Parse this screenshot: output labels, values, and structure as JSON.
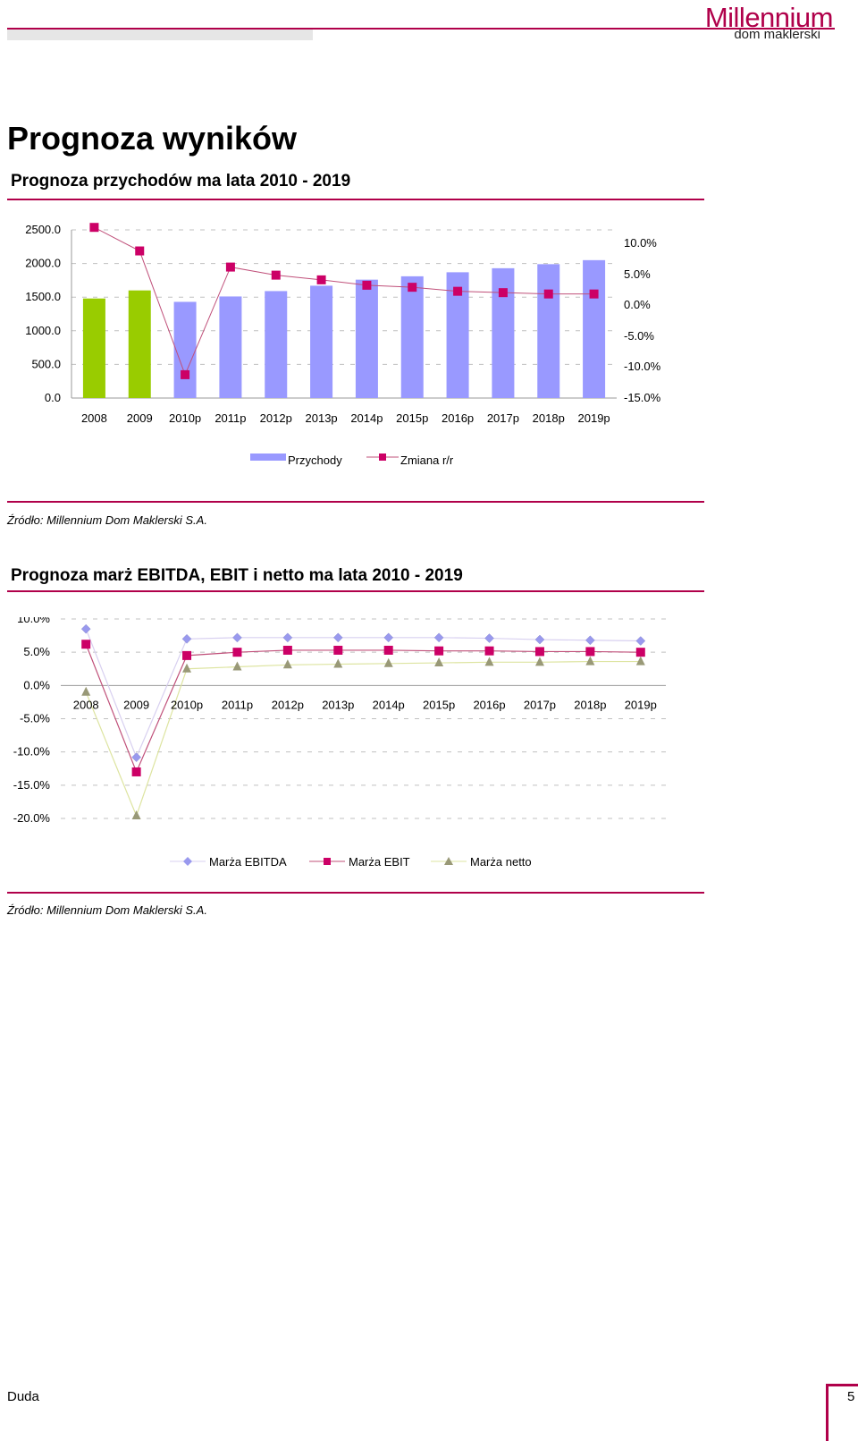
{
  "colors": {
    "accent": "#b0004a",
    "bar_actual": "#99cc00",
    "bar_forecast": "#9999ff",
    "change_line": "#c0507a",
    "ebitda": "#9999ee",
    "ebit": "#cc0066",
    "netto": "#999977",
    "netto_line": "#dde4a0",
    "grid": "#c0c0c0"
  },
  "header": {
    "logo_text": "Millennium",
    "logo_sub": "dom maklerski"
  },
  "page_title": "Prognoza wyników",
  "revenue_section": {
    "title": "Prognoza przychodów ma lata 2010 - 2019",
    "source": "Źródło: Millennium Dom Maklerski S.A."
  },
  "margins_section": {
    "title": "Prognoza marż EBITDA, EBIT i netto ma lata 2010 - 2019",
    "source": "Źródło: Millennium Dom Maklerski S.A."
  },
  "footer": {
    "author": "Duda",
    "page": "5"
  },
  "chart_data": [
    {
      "type": "bar",
      "categories": [
        "2008",
        "2009",
        "2010p",
        "2011p",
        "2012p",
        "2013p",
        "2014p",
        "2015p",
        "2016p",
        "2017p",
        "2018p",
        "2019p"
      ],
      "y_left": {
        "ticks": [
          "0.0",
          "500.0",
          "1000.0",
          "1500.0",
          "2000.0",
          "2500.0"
        ],
        "range": [
          0,
          2500
        ]
      },
      "y_right": {
        "ticks": [
          "-15.0%",
          "-10.0%",
          "-5.0%",
          "0.0%",
          "5.0%",
          "10.0%"
        ],
        "range": [
          -15,
          10
        ]
      },
      "series": [
        {
          "name": "Przychody",
          "axis": "left",
          "kind": "bar",
          "values": [
            1480,
            1600,
            1430,
            1510,
            1590,
            1670,
            1760,
            1810,
            1870,
            1930,
            1990,
            2050
          ]
        },
        {
          "name": "Zmiana r/r",
          "axis": "right",
          "kind": "line",
          "values": [
            11.7,
            8.2,
            -10.2,
            5.8,
            4.6,
            3.9,
            3.1,
            2.8,
            2.2,
            2.0,
            1.8,
            1.8
          ]
        }
      ],
      "grid": true,
      "legend": "bottom"
    },
    {
      "type": "line",
      "categories": [
        "2008",
        "2009",
        "2010p",
        "2011p",
        "2012p",
        "2013p",
        "2014p",
        "2015p",
        "2016p",
        "2017p",
        "2018p",
        "2019p"
      ],
      "y": {
        "ticks": [
          "-20.0%",
          "-15.0%",
          "-10.0%",
          "-5.0%",
          "0.0%",
          "5.0%",
          "10.0%"
        ],
        "range": [
          -20,
          10
        ]
      },
      "series": [
        {
          "name": "Marża EBITDA",
          "values": [
            8.5,
            -10.8,
            7.0,
            7.2,
            7.2,
            7.2,
            7.2,
            7.2,
            7.1,
            6.9,
            6.8,
            6.7
          ]
        },
        {
          "name": "Marża EBIT",
          "values": [
            6.2,
            -13.0,
            4.5,
            5.0,
            5.3,
            5.3,
            5.3,
            5.2,
            5.2,
            5.1,
            5.1,
            5.0
          ]
        },
        {
          "name": "Marża netto",
          "values": [
            -1.0,
            -19.6,
            2.5,
            2.8,
            3.1,
            3.2,
            3.3,
            3.4,
            3.5,
            3.5,
            3.6,
            3.6
          ]
        }
      ],
      "grid": true,
      "legend": "bottom"
    }
  ]
}
